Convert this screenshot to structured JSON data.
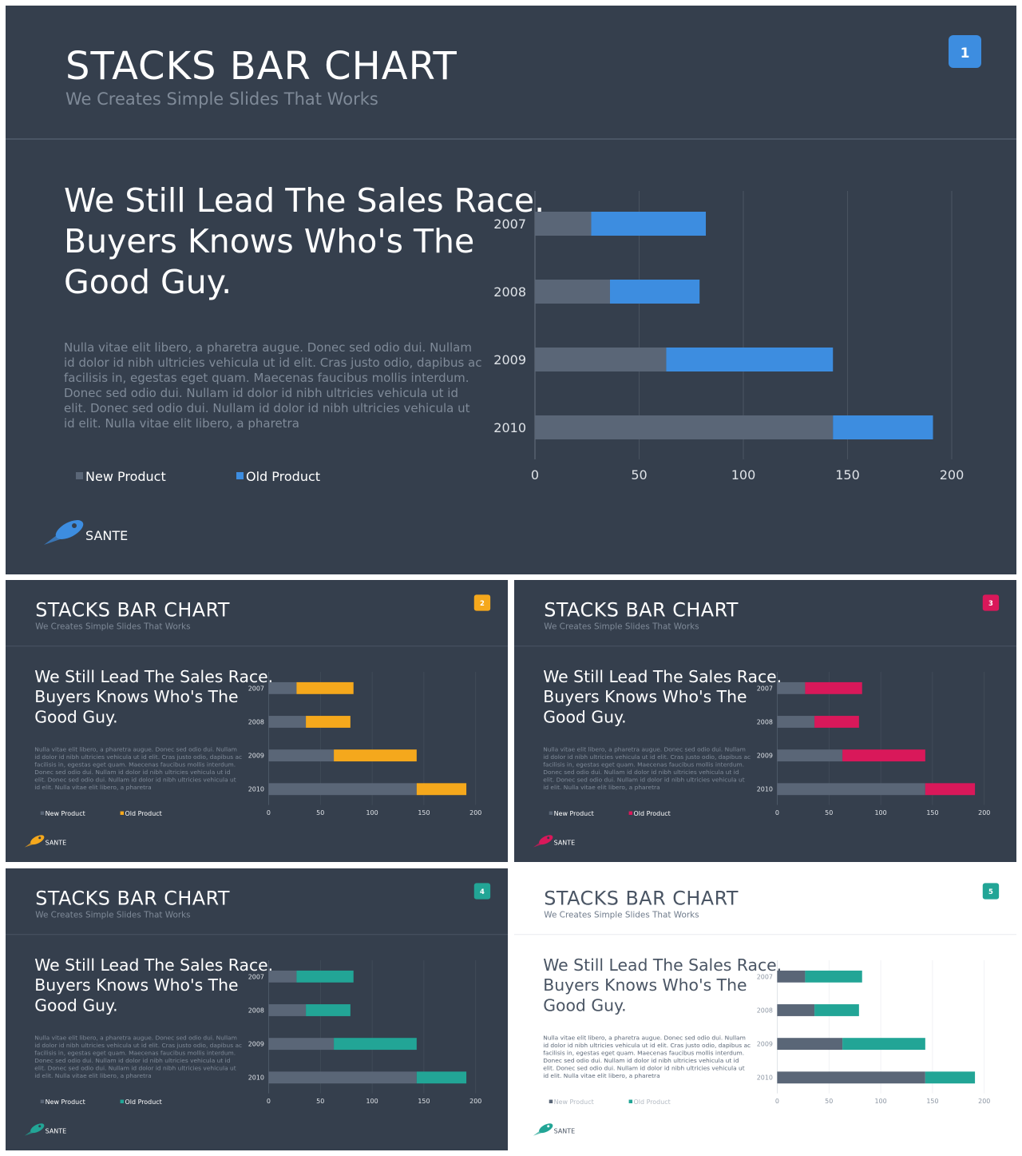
{
  "slides": [
    {
      "theme": "dark",
      "accent": "#3d8de0",
      "number": "1",
      "title": "STACKS BAR CHART",
      "subtitle": "We Creates Simple Slides That Works",
      "headline": [
        "We Still Lead The Sales Race.",
        "Buyers Knows Who's The",
        "Good Guy."
      ],
      "body": [
        "Nulla vitae elit libero, a pharetra augue. Donec sed odio dui. Nullam",
        "id dolor id nibh ultricies vehicula ut id elit. Cras justo odio, dapibus ac",
        "facilisis in, egestas eget quam. Maecenas faucibus mollis interdum.",
        "Donec sed odio dui. Nullam id dolor id nibh ultricies vehicula ut id",
        "elit. Donec sed odio dui. Nullam id dolor id nibh ultricies vehicula ut",
        "id elit. Nulla vitae elit libero, a pharetra"
      ],
      "legend": [
        "New Product",
        "Old Product"
      ],
      "logo": "SANTE"
    },
    {
      "theme": "dark",
      "accent": "#f5a81c",
      "number": "2",
      "title": "STACKS BAR CHART",
      "subtitle": "We Creates Simple Slides That Works",
      "headline": [
        "We Still Lead The Sales Race.",
        "Buyers Knows Who's The",
        "Good Guy."
      ],
      "body": [
        "Nulla vitae elit libero, a pharetra augue. Donec sed odio dui. Nullam",
        "id dolor id nibh ultricies vehicula ut id elit. Cras justo odio, dapibus ac",
        "facilisis in, egestas eget quam. Maecenas faucibus mollis interdum.",
        "Donec sed odio dui. Nullam id dolor id nibh ultricies vehicula ut id",
        "elit. Donec sed odio dui. Nullam id dolor id nibh ultricies vehicula ut",
        "id elit. Nulla vitae elit libero, a pharetra"
      ],
      "legend": [
        "New Product",
        "Old Product"
      ],
      "logo": "SANTE"
    },
    {
      "theme": "dark",
      "accent": "#d9185a",
      "number": "3",
      "title": "STACKS BAR CHART",
      "subtitle": "We Creates Simple Slides That Works",
      "headline": [
        "We Still Lead The Sales Race.",
        "Buyers Knows Who's The",
        "Good Guy."
      ],
      "body": [
        "Nulla vitae elit libero, a pharetra augue. Donec sed odio dui. Nullam",
        "id dolor id nibh ultricies vehicula ut id elit. Cras justo odio, dapibus ac",
        "facilisis in, egestas eget quam. Maecenas faucibus mollis interdum.",
        "Donec sed odio dui. Nullam id dolor id nibh ultricies vehicula ut id",
        "elit. Donec sed odio dui. Nullam id dolor id nibh ultricies vehicula ut",
        "id elit. Nulla vitae elit libero, a pharetra"
      ],
      "legend": [
        "New Product",
        "Old Product"
      ],
      "logo": "SANTE"
    },
    {
      "theme": "dark",
      "accent": "#22a596",
      "number": "4",
      "title": "STACKS BAR CHART",
      "subtitle": "We Creates Simple Slides That Works",
      "headline": [
        "We Still Lead The Sales Race.",
        "Buyers Knows Who's The",
        "Good Guy."
      ],
      "body": [
        "Nulla vitae elit libero, a pharetra augue. Donec sed odio dui. Nullam",
        "id dolor id nibh ultricies vehicula ut id elit. Cras justo odio, dapibus ac",
        "facilisis in, egestas eget quam. Maecenas faucibus mollis interdum.",
        "Donec sed odio dui. Nullam id dolor id nibh ultricies vehicula ut id",
        "elit. Donec sed odio dui. Nullam id dolor id nibh ultricies vehicula ut",
        "id elit. Nulla vitae elit libero, a pharetra"
      ],
      "legend": [
        "New Product",
        "Old Product"
      ],
      "logo": "SANTE"
    },
    {
      "theme": "light",
      "accent": "#22a596",
      "number": "5",
      "title": "STACKS BAR CHART",
      "subtitle": "We Creates Simple Slides That Works",
      "headline": [
        "We Still Lead The Sales Race.",
        "Buyers Knows Who's The",
        "Good Guy."
      ],
      "body": [
        "Nulla vitae elit libero, a pharetra augue. Donec sed odio dui. Nullam",
        "id dolor id nibh ultricies vehicula ut id elit. Cras justo odio, dapibus ac",
        "facilisis in, egestas eget quam. Maecenas faucibus mollis interdum.",
        "Donec sed odio dui. Nullam id dolor id nibh ultricies vehicula ut id",
        "elit. Donec sed odio dui. Nullam id dolor id nibh ultricies vehicula ut",
        "id elit. Nulla vitae elit libero, a pharetra"
      ],
      "legend": [
        "New Product",
        "Old Product"
      ],
      "logo": "SANTE"
    }
  ],
  "colors": {
    "dark_bg": "#353f4d",
    "new_product_bar": "#5a6677",
    "divider": "#4a5564",
    "light_bg": "#ffffff",
    "light_title": "#4a5564"
  },
  "chart_data": {
    "type": "bar",
    "orientation": "horizontal",
    "stacked": true,
    "categories": [
      "2007",
      "2008",
      "2009",
      "2010"
    ],
    "series": [
      {
        "name": "New Product",
        "values": [
          27,
          36,
          63,
          143
        ]
      },
      {
        "name": "Old Product",
        "values": [
          55,
          43,
          80,
          48
        ]
      }
    ],
    "xlim": [
      0,
      200
    ],
    "xticks": [
      0,
      50,
      100,
      150,
      200
    ],
    "grid": "vertical",
    "legend": "bottom-left"
  }
}
